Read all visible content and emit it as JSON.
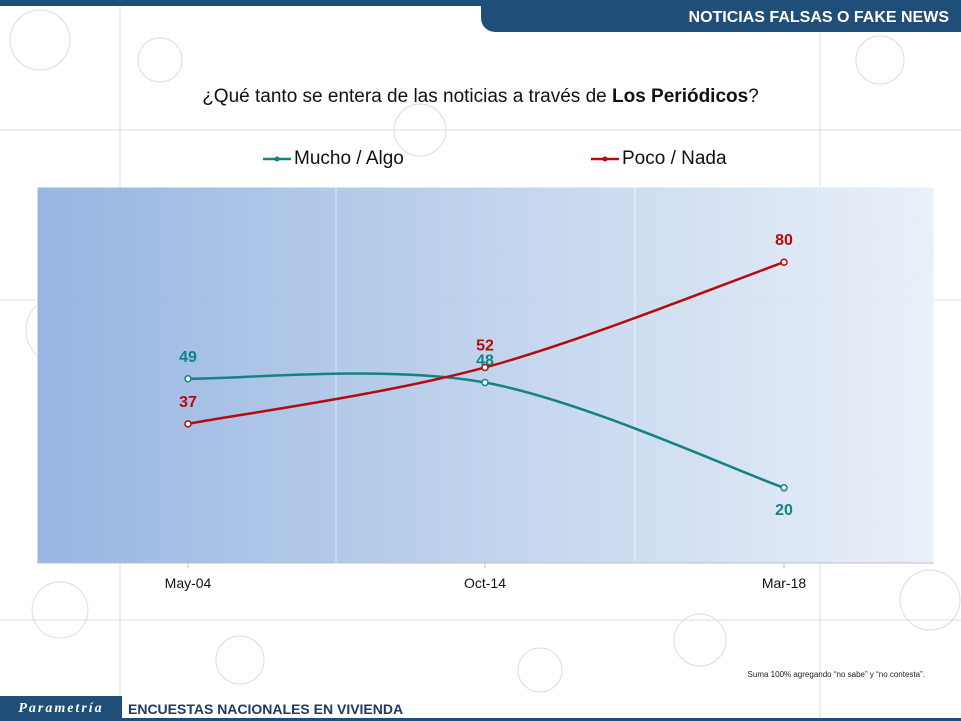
{
  "header": {
    "title": "NOTICIAS FALSAS O FAKE NEWS"
  },
  "question": {
    "prefix": "¿Qué tanto se entera de las noticias a través de ",
    "bold": "Los Periódicos",
    "suffix": "?"
  },
  "legend": {
    "series_1": "Mucho / Algo",
    "series_2": "Poco / Nada"
  },
  "colors": {
    "series_1": "#138383",
    "series_2": "#b40c0c",
    "brand": "#1f4e79"
  },
  "chart_data": {
    "type": "line",
    "categories": [
      "May-04",
      "Oct-14",
      "Mar-18"
    ],
    "series": [
      {
        "name": "Mucho / Algo",
        "values": [
          49,
          48,
          20
        ]
      },
      {
        "name": "Poco / Nada",
        "values": [
          37,
          52,
          80
        ]
      }
    ],
    "ylim": [
      0,
      100
    ],
    "title": "",
    "xlabel": "",
    "ylabel": "",
    "legend_position": "top",
    "grid": true
  },
  "footnote": "Suma 100% agregando “no sabe” y “no contesta”.",
  "footer": {
    "logo": "Parametría",
    "label": "ENCUESTAS NACIONALES EN VIVIENDA"
  }
}
